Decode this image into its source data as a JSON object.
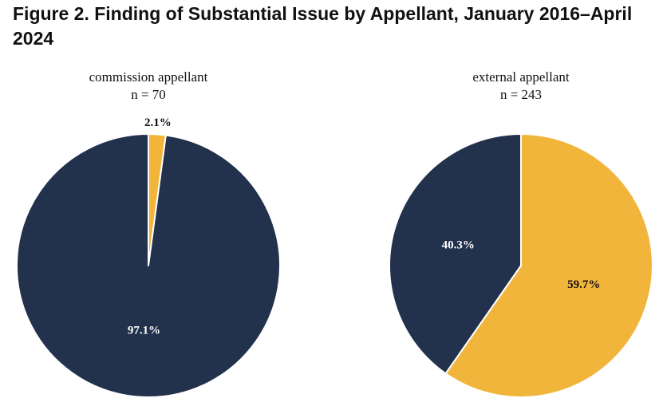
{
  "figure": {
    "title": "Figure 2. Finding of Substantial Issue by Appellant, January 2016–April 2024"
  },
  "colors": {
    "navy": "#22314c",
    "gold": "#f2b53c",
    "label_light": "#ffffff",
    "label_dark": "#111111"
  },
  "chart_data": [
    {
      "type": "pie",
      "title": "commission appellant",
      "subtitle": "n = 70",
      "slices": [
        {
          "name": "gold",
          "value": 2.1,
          "label": "2.1%",
          "color": "#f2b53c",
          "label_position": "outside"
        },
        {
          "name": "navy",
          "value": 97.1,
          "label": "97.1%",
          "color": "#22314c",
          "label_position": "inside"
        }
      ]
    },
    {
      "type": "pie",
      "title": "external appellant",
      "subtitle": "n = 243",
      "slices": [
        {
          "name": "gold",
          "value": 59.7,
          "label": "59.7%",
          "color": "#f2b53c",
          "label_position": "inside"
        },
        {
          "name": "navy",
          "value": 40.3,
          "label": "40.3%",
          "color": "#22314c",
          "label_position": "inside"
        }
      ]
    }
  ]
}
